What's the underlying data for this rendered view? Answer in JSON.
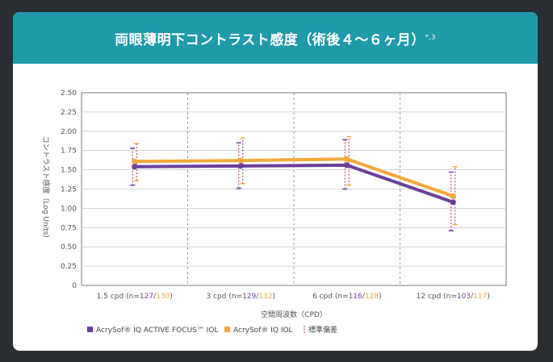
{
  "chart_data": {
    "type": "line",
    "title": "両眼薄明下コントラスト感度（術後４〜６ヶ月）",
    "title_superscript": "*,3",
    "xlabel": "空間周波数（CPD）",
    "ylabel": "コントラスト感度（Log Units）",
    "ylim": [
      0,
      2.5
    ],
    "yticks": [
      "0",
      "0.25",
      "0.50",
      "0.75",
      "1.00",
      "1.25",
      "1.50",
      "1.75",
      "2.00",
      "2.25",
      "2.50"
    ],
    "grid": true,
    "legend_position": "bottom",
    "categories": [
      {
        "label": "1.5 cpd",
        "n_open": "(n=",
        "n_a": "127",
        "n_sep": "/",
        "n_b": "130",
        "n_close": ")"
      },
      {
        "label": "3 cpd",
        "n_open": "(n=",
        "n_a": "129",
        "n_sep": "/",
        "n_b": "132",
        "n_close": ")"
      },
      {
        "label": "6 cpd",
        "n_open": "(n=",
        "n_a": "116",
        "n_sep": "/",
        "n_b": "128",
        "n_close": ")"
      },
      {
        "label": "12 cpd",
        "n_open": "(n=",
        "n_a": "103",
        "n_sep": "/",
        "n_b": "117",
        "n_close": ")"
      }
    ],
    "series": [
      {
        "name": "AcrySof® IQ ACTIVE FOCUS™ IOL",
        "color": "#6b3f9b",
        "values": [
          1.54,
          1.55,
          1.56,
          1.08
        ],
        "error_low": [
          1.3,
          1.26,
          1.25,
          0.71
        ],
        "error_high": [
          1.78,
          1.85,
          1.89,
          1.47
        ]
      },
      {
        "name": "AcrySof® IQ IOL",
        "color": "#f2a93b",
        "values": [
          1.61,
          1.62,
          1.64,
          1.16
        ],
        "error_low": [
          1.36,
          1.32,
          1.3,
          0.79
        ],
        "error_high": [
          1.84,
          1.91,
          1.93,
          1.54
        ]
      }
    ],
    "legend_extra": "標準偏差",
    "errorbar_color": "#b0304a"
  }
}
